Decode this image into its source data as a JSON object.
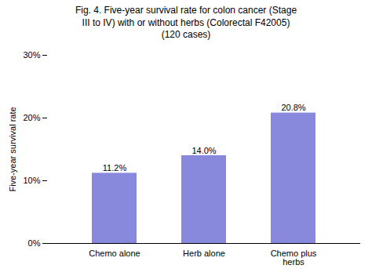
{
  "chart_data": {
    "type": "bar",
    "title": "Fig. 4. Five-year survival rate for colon cancer (Stage\nIII to IV) with or without herbs (Colorectal F42005)\n(120 cases)",
    "categories": [
      "Chemo alone",
      "Herb alone",
      "Chemo plus\nherbs"
    ],
    "values": [
      0.112,
      0.14,
      0.208
    ],
    "value_labels": [
      "11.2%",
      "14.0%",
      "20.8%"
    ],
    "data_labels": true,
    "color": "#8888dd",
    "ylabel": "Five-year survival rate",
    "ylim": [
      0,
      0.3
    ],
    "yticks": [
      {
        "value": 0.0,
        "label": "0%"
      },
      {
        "value": 0.1,
        "label": "10%"
      },
      {
        "value": 0.2,
        "label": "20%"
      },
      {
        "value": 0.3,
        "label": "30%"
      }
    ],
    "grid": false
  }
}
